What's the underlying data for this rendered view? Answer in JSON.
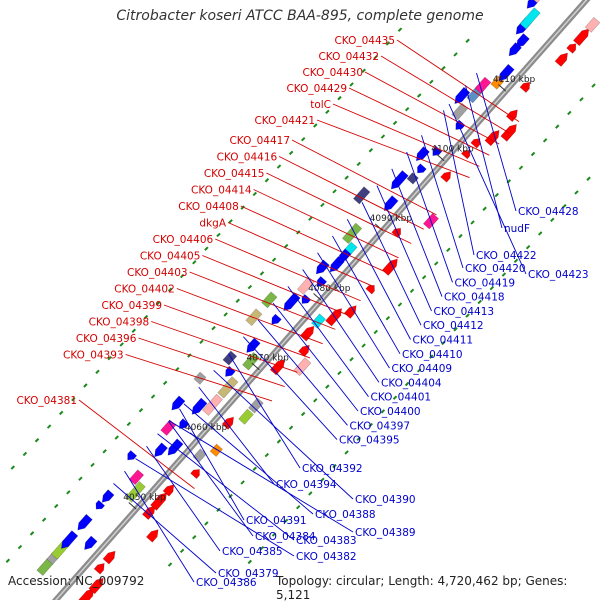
{
  "title": "Citrobacter koseri ATCC BAA-895, complete genome",
  "footer": {
    "accession": "Accession: NC_009792",
    "topology": "Topology: circular; Length: 4,720,462 bp; Genes: 5,121"
  },
  "colors": {
    "forward_label": "#d40000",
    "reverse_label": "#0000cc",
    "backbone": "#8c8c8c",
    "tick": "#1a8a1a"
  },
  "scale_ticks": [
    "4050 kbp",
    "4060 kbp",
    "4070 kbp",
    "4080 kbp",
    "4090 kbp",
    "4100 kbp",
    "4110 kbp"
  ],
  "forward_labels": [
    "CKO_04435",
    "CKO_04432",
    "CKO_04430",
    "CKO_04429",
    "tolC",
    "CKO_04421",
    "CKO_04417",
    "CKO_04416",
    "CKO_04415",
    "CKO_04414",
    "CKO_04408",
    "dkgA",
    "CKO_04406",
    "CKO_04405",
    "CKO_04403",
    "CKO_04402",
    "CKO_04399",
    "CKO_04398",
    "CKO_04396",
    "CKO_04393",
    "CKO_04381"
  ],
  "reverse_labels": [
    "CKO_04428",
    "nudF",
    "CKO_04422",
    "CKO_04423",
    "CKO_04420",
    "CKO_04419",
    "CKO_04418",
    "CKO_04413",
    "CKO_04412",
    "CKO_04411",
    "CKO_04410",
    "CKO_04409",
    "CKO_04404",
    "CKO_04401",
    "CKO_04400",
    "CKO_04397",
    "CKO_04395",
    "CKO_04392",
    "CKO_04390",
    "CKO_04394",
    "CKO_04388",
    "CKO_04389",
    "CKO_04391",
    "CKO_04384",
    "CKO_04383",
    "CKO_04385",
    "CKO_04382",
    "CKO_04386",
    "CKO_04379"
  ]
}
